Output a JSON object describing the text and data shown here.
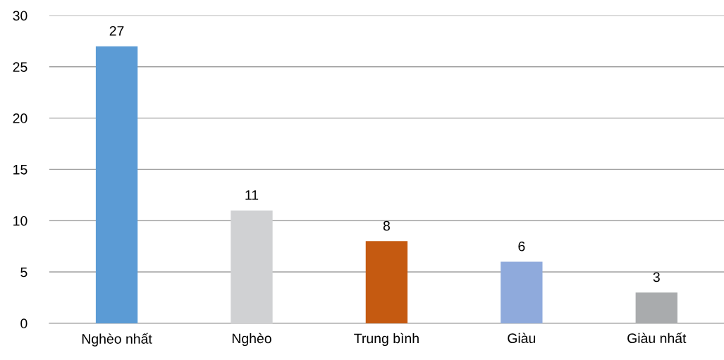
{
  "chart_data": {
    "type": "bar",
    "categories": [
      "Nghèo nhất",
      "Nghèo",
      "Trung bình",
      "Giàu",
      "Giàu nhất"
    ],
    "values": [
      27,
      11,
      8,
      6,
      3
    ],
    "colors": [
      "#5b9bd5",
      "#d0d1d3",
      "#c55a11",
      "#8faadc",
      "#a9abad"
    ],
    "ylim": [
      0,
      30
    ],
    "yticks": [
      0,
      5,
      10,
      15,
      20,
      25,
      30
    ],
    "grid": "y",
    "data_labels": true,
    "legend": false
  }
}
